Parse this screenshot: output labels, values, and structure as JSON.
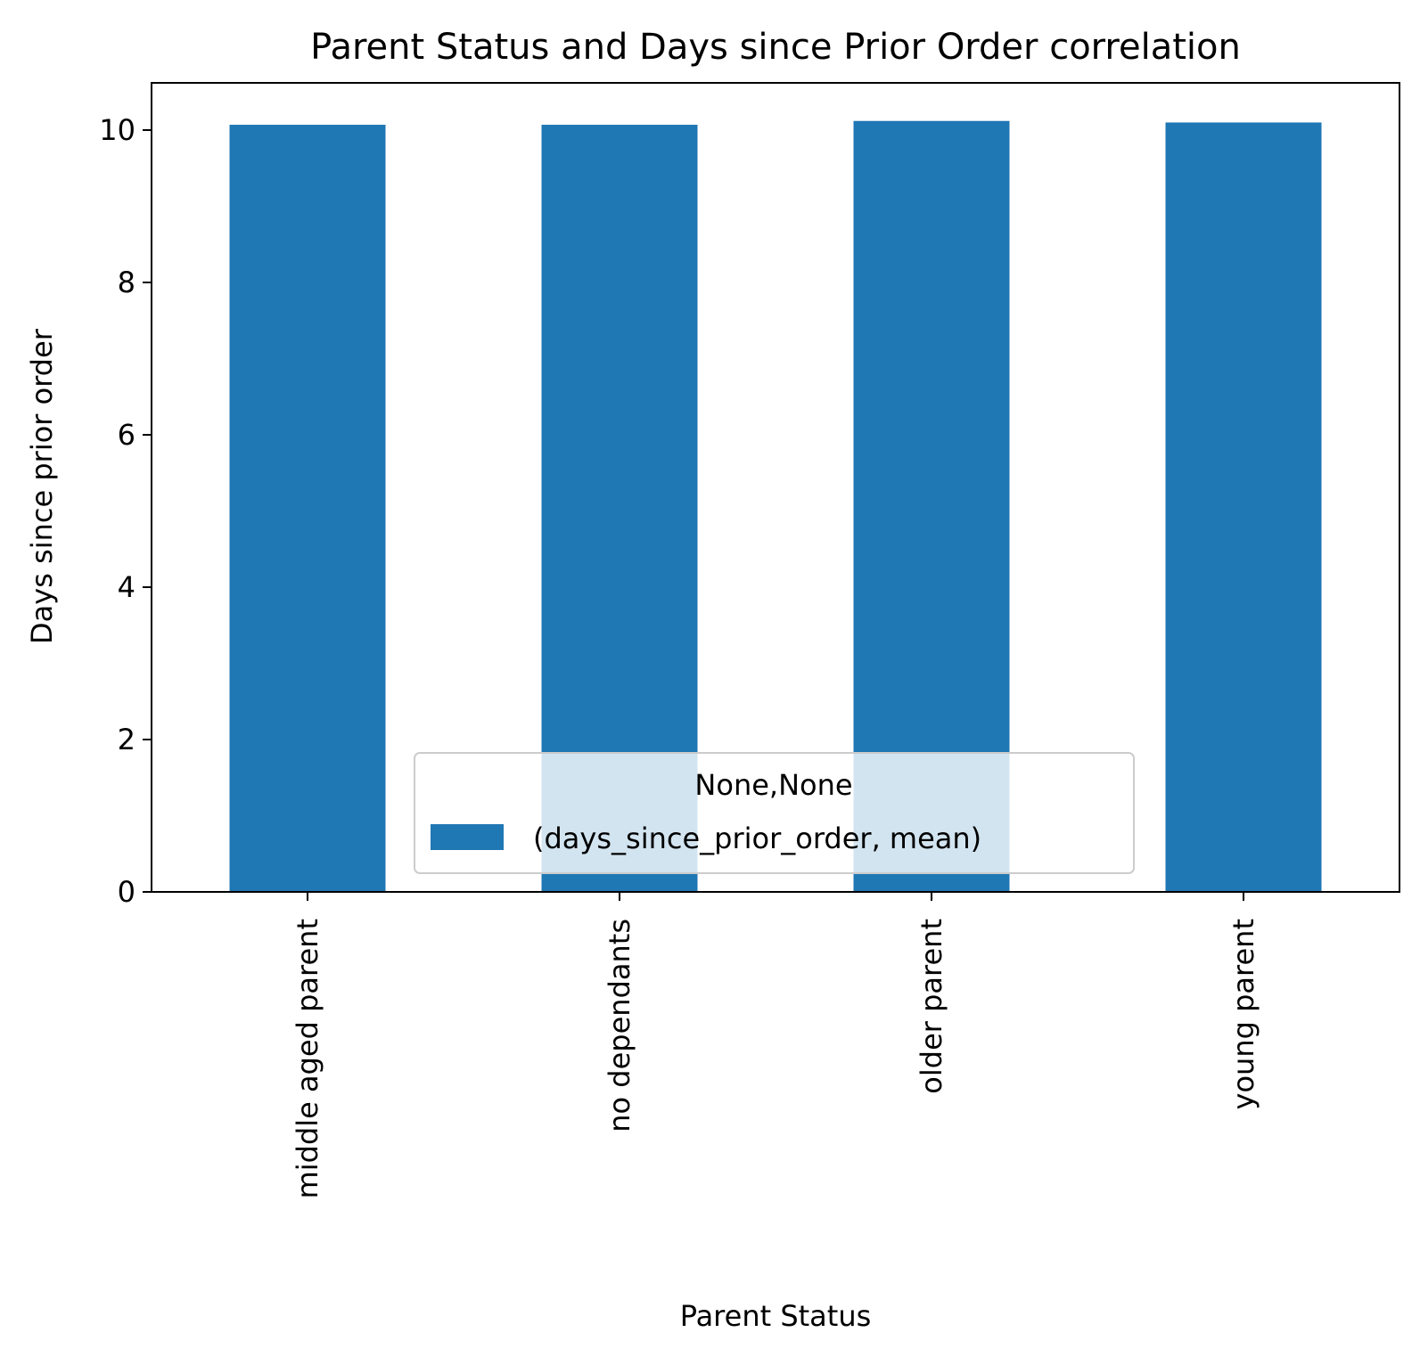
{
  "chart_data": {
    "type": "bar",
    "title": "Parent Status and Days since Prior Order correlation",
    "xlabel": "Parent Status",
    "ylabel": "Days since prior order",
    "categories": [
      "middle aged parent",
      "no dependants",
      "older parent",
      "young parent"
    ],
    "series": [
      {
        "name": "(days_since_prior_order, mean)",
        "values": [
          10.07,
          10.07,
          10.12,
          10.1
        ]
      }
    ],
    "ylim": [
      0,
      10.62
    ],
    "yticks": [
      0,
      2,
      4,
      6,
      8,
      10
    ],
    "grid": false,
    "legend": {
      "title": "None,None",
      "placement": "lower-center"
    },
    "colors": {
      "bar": "#1f77b4"
    }
  }
}
